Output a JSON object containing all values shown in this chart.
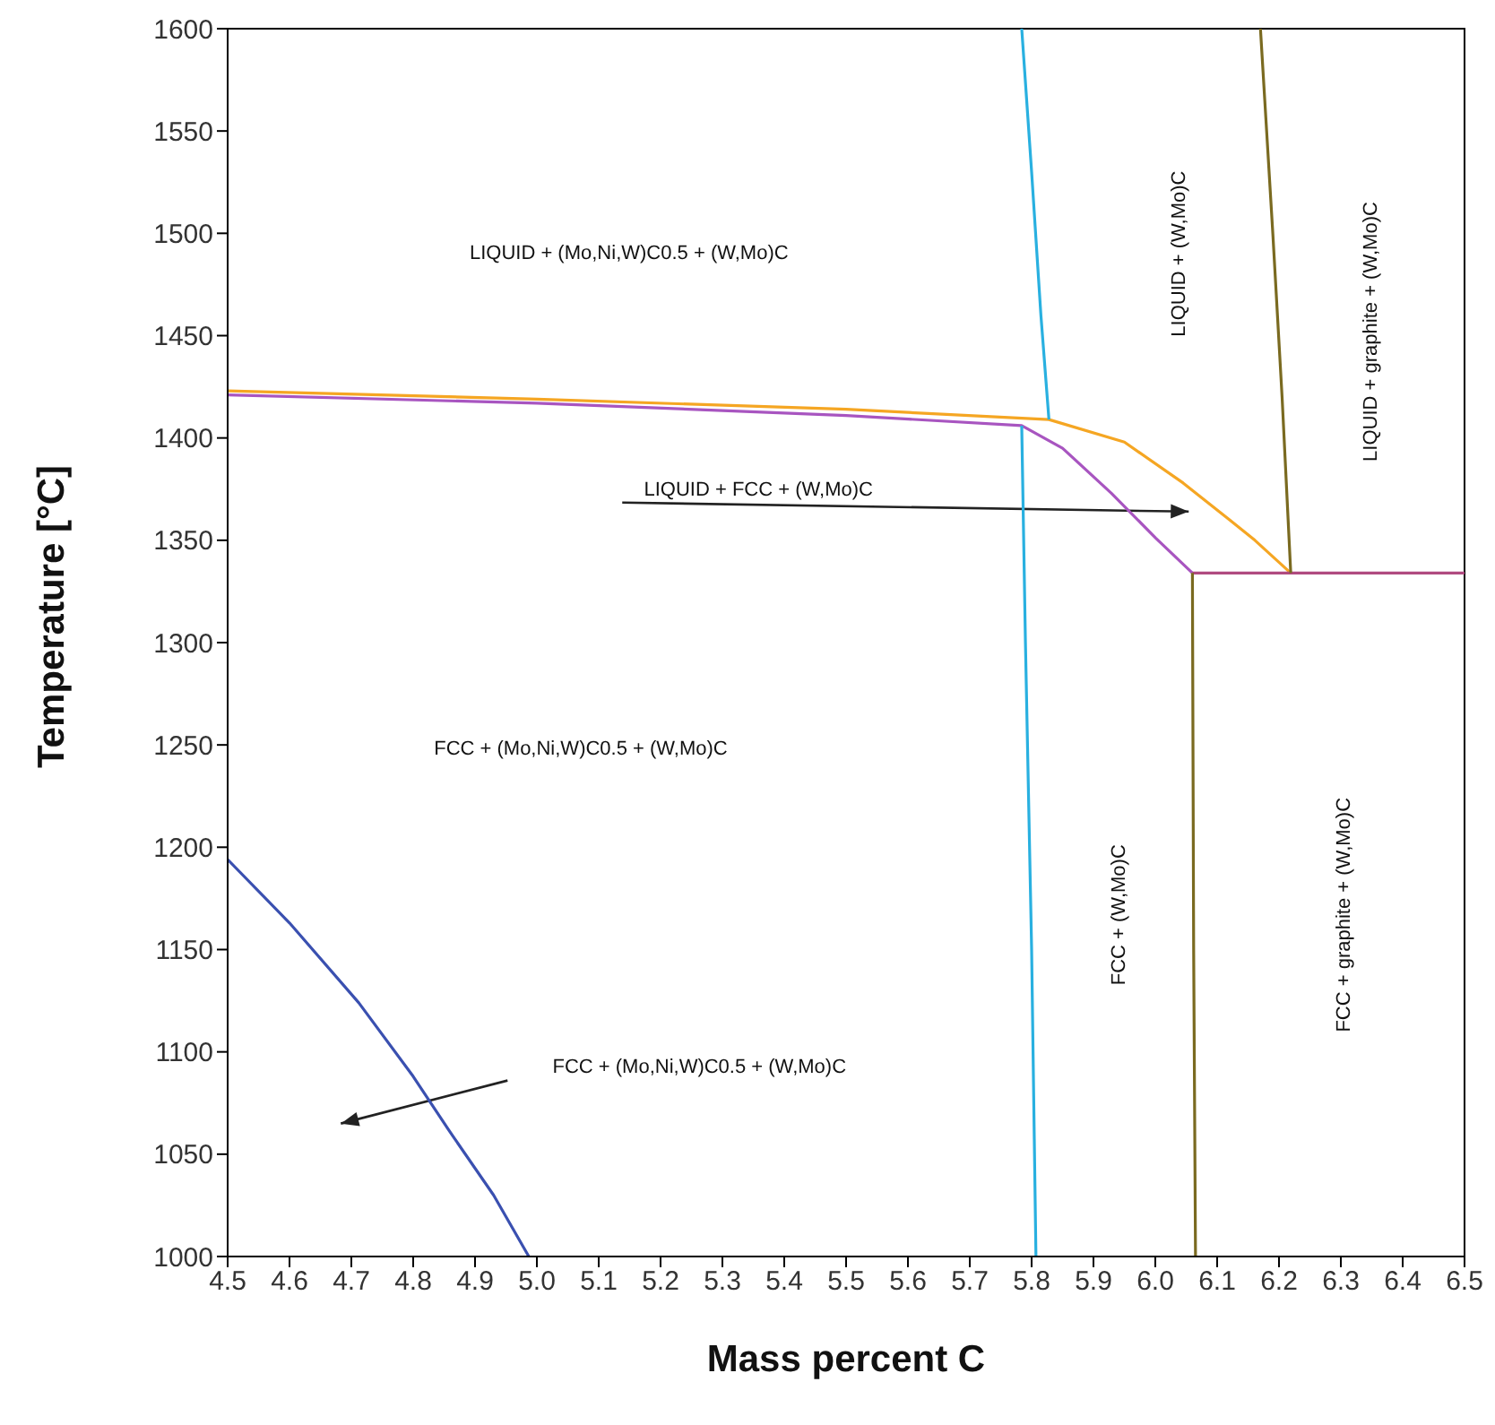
{
  "chart_data": {
    "type": "line",
    "xlabel": "Mass percent C",
    "ylabel": "Temperature [°C]",
    "xlim": [
      4.5,
      6.5
    ],
    "ylim": [
      1000,
      1600
    ],
    "xticks": [
      4.5,
      4.6,
      4.7,
      4.8,
      4.9,
      {
        "value": 5,
        "label": "5.0"
      },
      5.1,
      5.2,
      5.3,
      5.4,
      5.5,
      5.6,
      5.7,
      5.8,
      5.9,
      {
        "value": 6,
        "label": "6.0"
      },
      6.1,
      6.2,
      6.3,
      6.4,
      6.5
    ],
    "yticks": [
      1000,
      1050,
      1100,
      1150,
      1200,
      1250,
      1300,
      1350,
      1400,
      1450,
      1500,
      1550,
      1600
    ],
    "grid": false,
    "legend": false,
    "marker": "none",
    "line_style": "solid",
    "series": [
      {
        "color": "#f5a623",
        "x": [
          4.5,
          5.0,
          5.5,
          5.828,
          5.95,
          6.045,
          6.12,
          6.161,
          6.219
        ],
        "values": [
          1423,
          1419,
          1414,
          1409,
          1398,
          1378,
          1360,
          1350,
          1334
        ]
      },
      {
        "color": "#a855c0",
        "x": [
          4.5,
          5.0,
          5.5,
          5.784,
          5.85,
          5.929,
          6.001,
          6.06
        ],
        "values": [
          1421,
          1417,
          1411,
          1406,
          1395,
          1373,
          1351,
          1334
        ]
      },
      {
        "color": "#b04a80",
        "x": [
          6.06,
          6.5
        ],
        "values": [
          1334,
          1334
        ]
      },
      {
        "color": "#29b0e0",
        "x": [
          5.784,
          5.8,
          5.815,
          5.828
        ],
        "values": [
          1600,
          1530,
          1460,
          1409
        ]
      },
      {
        "color": "#29b0e0",
        "x": [
          5.784,
          5.79,
          5.8,
          5.807
        ],
        "values": [
          1406,
          1300,
          1150,
          1000
        ]
      },
      {
        "color": "#7a6a20",
        "x": [
          6.17,
          6.19,
          6.205,
          6.219
        ],
        "values": [
          1600,
          1500,
          1420,
          1334
        ]
      },
      {
        "color": "#7a6a20",
        "x": [
          6.06,
          6.062,
          6.065
        ],
        "values": [
          1334,
          1150,
          1000
        ]
      },
      {
        "color": "#3a50b0",
        "x": [
          4.5,
          4.6,
          4.712,
          4.8,
          4.857,
          4.93,
          4.987
        ],
        "values": [
          1194,
          1163,
          1124,
          1088,
          1062,
          1030,
          1000
        ]
      }
    ],
    "annotations": [
      "LIQUID + (Mo,Ni,W)C0.5 + (W,Mo)C",
      "LIQUID + (W,Mo)C",
      "LIQUID + graphite + (W,Mo)C",
      "LIQUID + FCC + (W,Mo)C",
      "FCC + (Mo,Ni,W)C0.5 + (W,Mo)C",
      "FCC + (W,Mo)C",
      "FCC + graphite + (W,Mo)C",
      "FCC + (Mo,Ni,W)C0.5 + (W,Mo)C"
    ]
  }
}
